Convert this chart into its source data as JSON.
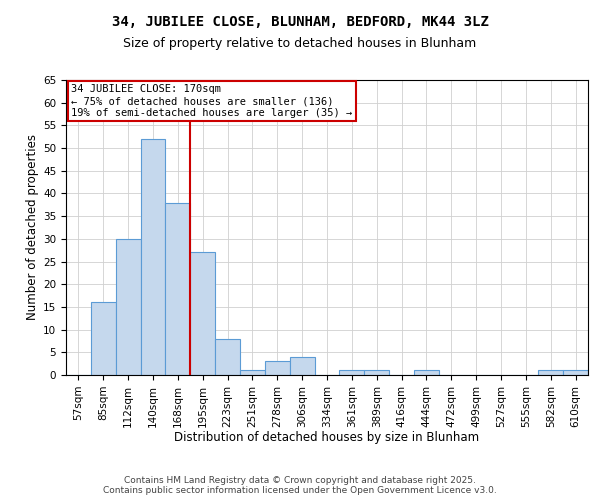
{
  "title1": "34, JUBILEE CLOSE, BLUNHAM, BEDFORD, MK44 3LZ",
  "title2": "Size of property relative to detached houses in Blunham",
  "xlabel": "Distribution of detached houses by size in Blunham",
  "ylabel": "Number of detached properties",
  "categories": [
    "57sqm",
    "85sqm",
    "112sqm",
    "140sqm",
    "168sqm",
    "195sqm",
    "223sqm",
    "251sqm",
    "278sqm",
    "306sqm",
    "334sqm",
    "361sqm",
    "389sqm",
    "416sqm",
    "444sqm",
    "472sqm",
    "499sqm",
    "527sqm",
    "555sqm",
    "582sqm",
    "610sqm"
  ],
  "values": [
    0,
    16,
    30,
    52,
    38,
    27,
    8,
    1,
    3,
    4,
    0,
    1,
    1,
    0,
    1,
    0,
    0,
    0,
    0,
    1,
    1
  ],
  "bar_color": "#c5d8ed",
  "bar_edge_color": "#5b9bd5",
  "vline_x": 4.5,
  "vline_color": "#cc0000",
  "annotation_text": "34 JUBILEE CLOSE: 170sqm\n← 75% of detached houses are smaller (136)\n19% of semi-detached houses are larger (35) →",
  "annotation_box_color": "#ffffff",
  "annotation_box_edge": "#cc0000",
  "ylim": [
    0,
    65
  ],
  "yticks": [
    0,
    5,
    10,
    15,
    20,
    25,
    30,
    35,
    40,
    45,
    50,
    55,
    60,
    65
  ],
  "footer": "Contains HM Land Registry data © Crown copyright and database right 2025.\nContains public sector information licensed under the Open Government Licence v3.0.",
  "background_color": "#ffffff",
  "grid_color": "#d0d0d0",
  "title_fontsize": 10,
  "subtitle_fontsize": 9,
  "axis_label_fontsize": 8.5,
  "tick_fontsize": 7.5,
  "annotation_fontsize": 7.5,
  "footer_fontsize": 6.5
}
